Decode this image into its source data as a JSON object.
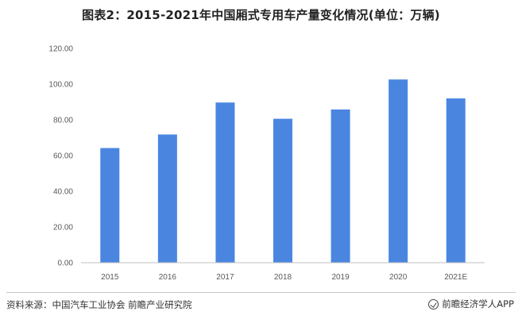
{
  "header": {
    "title": "图表2：2015-2021年中国厢式专用车产量变化情况(单位：万辆)"
  },
  "footer": {
    "source": "资料来源：中国汽车工业协会 前瞻产业研究院",
    "brand": "前瞻经济学人APP"
  },
  "colors": {
    "bar": "#4a86e0",
    "axis": "#bfbfbf"
  },
  "chart_data": {
    "type": "bar",
    "title": "图表2：2015-2021年中国厢式专用车产量变化情况(单位：万辆)",
    "categories": [
      "2015",
      "2016",
      "2017",
      "2018",
      "2019",
      "2020",
      "2021E"
    ],
    "values": [
      64.2,
      71.8,
      89.7,
      80.6,
      85.8,
      102.6,
      92.0
    ],
    "ylim": [
      0,
      120
    ],
    "yticks": [
      "0.00",
      "20.00",
      "40.00",
      "60.00",
      "80.00",
      "100.00",
      "120.00"
    ],
    "grid": false,
    "xlabel": "",
    "ylabel": ""
  }
}
